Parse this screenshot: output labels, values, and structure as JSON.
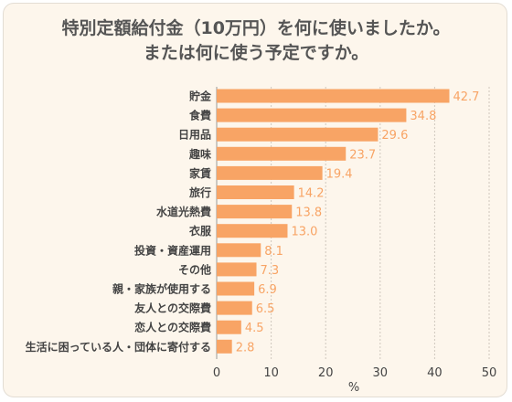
{
  "chart_data": {
    "type": "bar",
    "orientation": "horizontal",
    "title_lines": [
      "特別定額給付金（10万円）を何に使いましたか。",
      "または何に使う予定ですか。"
    ],
    "categories": [
      "貯金",
      "食費",
      "日用品",
      "趣味",
      "家賃",
      "旅行",
      "水道光熱費",
      "衣服",
      "投資・資産運用",
      "その他",
      "親・家族が使用する",
      "友人との交際費",
      "恋人との交際費",
      "生活に困っている人・団体に寄付する"
    ],
    "values": [
      42.7,
      34.8,
      29.6,
      23.7,
      19.4,
      14.2,
      13.8,
      13.0,
      8.1,
      7.3,
      6.9,
      6.5,
      4.5,
      2.8
    ],
    "value_labels": [
      "42.7",
      "34.8",
      "29.6",
      "23.7",
      "19.4",
      "14.2",
      "13.8",
      "13.0",
      "8.1",
      "7.3",
      "6.9",
      "6.5",
      "4.5",
      "2.8"
    ],
    "xlim": [
      0,
      50
    ],
    "xticks": [
      0,
      10,
      20,
      30,
      40,
      50
    ],
    "xlabel": "%",
    "grid": "vertical dotted",
    "bar_color": "#f8a465",
    "label_color": "#f8a465",
    "text_color": "#444444",
    "background_color": "#fdf6ec"
  }
}
